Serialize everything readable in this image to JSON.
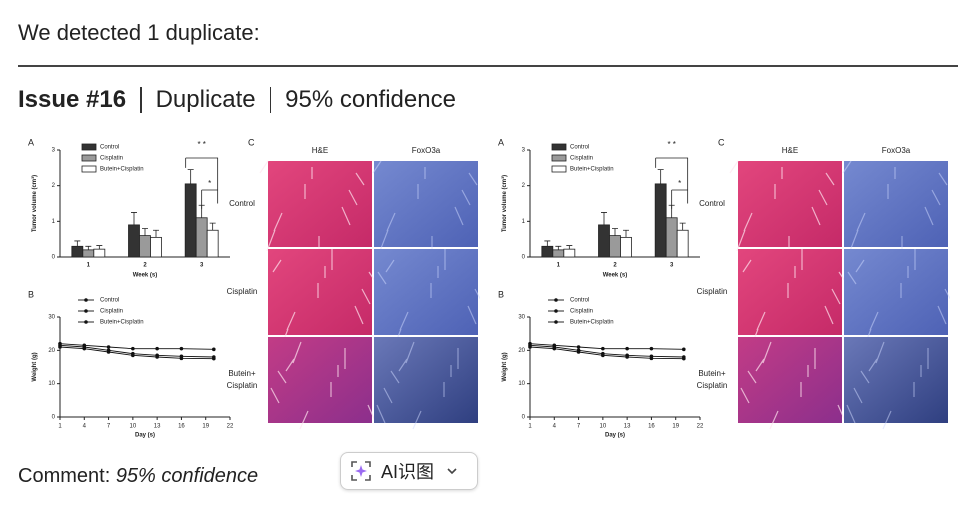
{
  "header": {
    "title": "We detected 1 duplicate:"
  },
  "issue": {
    "label": "Issue #16",
    "type": "Duplicate",
    "confidence": "95% confidence"
  },
  "figure": {
    "panel_a": {
      "type": "bar",
      "letter": "A",
      "ylabel": "Tumor volume (cm³)",
      "xlabel": "Week (s)",
      "categories": [
        "1",
        "2",
        "3"
      ],
      "series": [
        {
          "name": "Control",
          "color": "#333333",
          "values": [
            0.3,
            0.9,
            2.05
          ],
          "errors": [
            0.15,
            0.35,
            0.4
          ]
        },
        {
          "name": "Cisplatin",
          "color": "#9a9a9a",
          "values": [
            0.2,
            0.6,
            1.1
          ],
          "errors": [
            0.1,
            0.2,
            0.35
          ]
        },
        {
          "name": "Butein+Cisplatin",
          "color": "#ffffff",
          "values": [
            0.22,
            0.55,
            0.75
          ],
          "errors": [
            0.1,
            0.2,
            0.2
          ]
        }
      ],
      "ylim": [
        0,
        3
      ],
      "yticks": [
        0,
        1,
        2,
        3
      ],
      "annotations": [
        "* *",
        "*"
      ]
    },
    "panel_b": {
      "type": "line",
      "letter": "B",
      "ylabel": "Weight (g)",
      "xlabel": "Day (s)",
      "x": [
        1,
        4,
        7,
        10,
        13,
        16,
        20
      ],
      "series": [
        {
          "name": "Control",
          "color": "#111111",
          "values": [
            22,
            21.5,
            21,
            20.5,
            20.5,
            20.5,
            20.3
          ]
        },
        {
          "name": "Cisplatin",
          "color": "#111111",
          "values": [
            21.5,
            21,
            20,
            19,
            18.5,
            18.2,
            18
          ]
        },
        {
          "name": "Butein+Cisplatin",
          "color": "#111111",
          "values": [
            21,
            20.5,
            19.5,
            18.5,
            18,
            17.6,
            17.5
          ]
        }
      ],
      "xlim": [
        1,
        22
      ],
      "xticks": [
        1,
        4,
        7,
        10,
        13,
        16,
        19,
        22
      ],
      "ylim": [
        0,
        30
      ],
      "yticks": [
        0,
        10,
        20,
        30
      ]
    },
    "panel_c": {
      "letter": "C",
      "columns": [
        "H&E",
        "FoxO3a"
      ],
      "rows": [
        "Control",
        "Cisplatin",
        [
          "Butein+",
          "Cisplatin"
        ]
      ]
    }
  },
  "comment": {
    "label": "Comment:",
    "value": "95% confidence"
  },
  "button": {
    "label": "AI识图"
  }
}
